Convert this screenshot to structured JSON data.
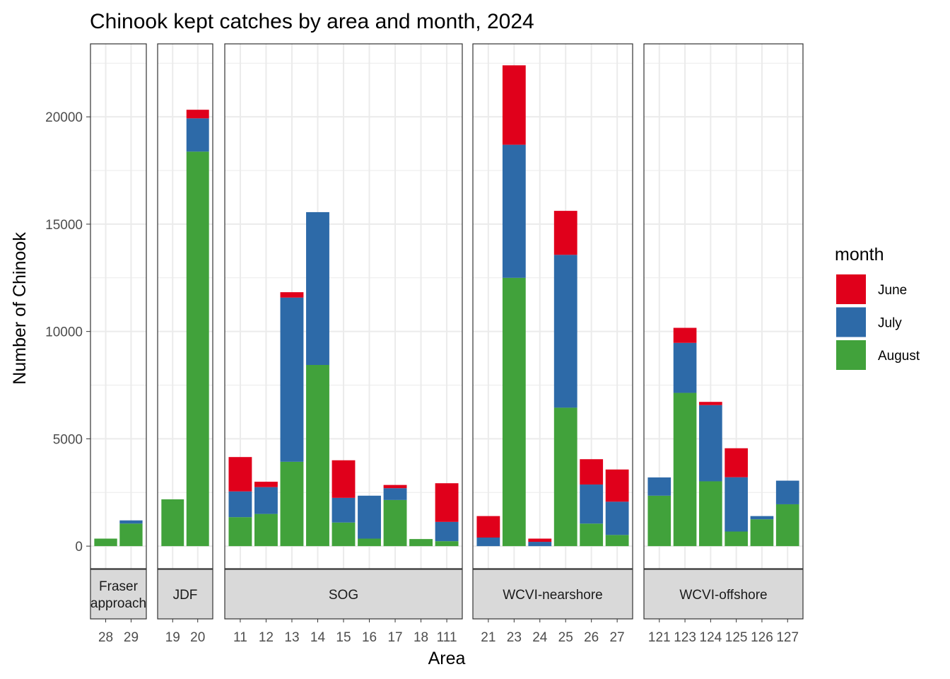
{
  "chart_data": {
    "type": "bar",
    "stacked": true,
    "title": "Chinook kept catches by area and month, 2024",
    "xlabel": "Area",
    "ylabel": "Number of Chinook",
    "ylim": [
      -1050,
      23400
    ],
    "yticks": [
      0,
      5000,
      10000,
      15000,
      20000
    ],
    "grid": true,
    "legend": {
      "title": "month",
      "placement": "right",
      "entries": [
        {
          "name": "June",
          "color": "#e0001b"
        },
        {
          "name": "July",
          "color": "#2d6aa8"
        },
        {
          "name": "August",
          "color": "#41a23b"
        }
      ]
    },
    "stack_order": [
      "August",
      "July",
      "June"
    ],
    "facets": [
      {
        "strip": [
          "Fraser",
          "approach"
        ],
        "areas": [
          {
            "area": "28",
            "June": 0,
            "July": 0,
            "August": 350
          },
          {
            "area": "29",
            "June": 0,
            "July": 150,
            "August": 1050
          }
        ]
      },
      {
        "strip": [
          "JDF"
        ],
        "areas": [
          {
            "area": "19",
            "June": 0,
            "July": 0,
            "August": 2180
          },
          {
            "area": "20",
            "June": 400,
            "July": 1550,
            "August": 18380
          }
        ]
      },
      {
        "strip": [
          "SOG"
        ],
        "areas": [
          {
            "area": "11",
            "June": 1600,
            "July": 1200,
            "August": 1350
          },
          {
            "area": "12",
            "June": 250,
            "July": 1250,
            "August": 1500
          },
          {
            "area": "13",
            "June": 250,
            "July": 7650,
            "August": 3930
          },
          {
            "area": "14",
            "June": 0,
            "July": 7120,
            "August": 8440
          },
          {
            "area": "15",
            "June": 1750,
            "July": 1150,
            "August": 1100
          },
          {
            "area": "16",
            "June": 0,
            "July": 2000,
            "August": 350
          },
          {
            "area": "17",
            "June": 150,
            "July": 550,
            "August": 2150
          },
          {
            "area": "18",
            "June": 0,
            "July": 0,
            "August": 330
          },
          {
            "area": "111",
            "June": 1800,
            "July": 900,
            "August": 230
          }
        ]
      },
      {
        "strip": [
          "WCVI-nearshore"
        ],
        "areas": [
          {
            "area": "21",
            "June": 1000,
            "July": 400,
            "August": 0
          },
          {
            "area": "23",
            "June": 3700,
            "July": 6200,
            "August": 12500
          },
          {
            "area": "24",
            "June": 150,
            "July": 200,
            "August": 0
          },
          {
            "area": "25",
            "June": 2050,
            "July": 7120,
            "August": 6450
          },
          {
            "area": "26",
            "June": 1180,
            "July": 1820,
            "August": 1050
          },
          {
            "area": "27",
            "June": 1500,
            "July": 1550,
            "August": 520
          }
        ]
      },
      {
        "strip": [
          "WCVI-offshore"
        ],
        "areas": [
          {
            "area": "121",
            "June": 0,
            "July": 850,
            "August": 2350
          },
          {
            "area": "123",
            "June": 700,
            "July": 2330,
            "August": 7140
          },
          {
            "area": "124",
            "June": 150,
            "July": 3550,
            "August": 3020
          },
          {
            "area": "125",
            "June": 1350,
            "July": 2530,
            "August": 680
          },
          {
            "area": "126",
            "June": 0,
            "July": 150,
            "August": 1250
          },
          {
            "area": "127",
            "June": 0,
            "July": 1100,
            "August": 1950
          }
        ]
      }
    ]
  }
}
